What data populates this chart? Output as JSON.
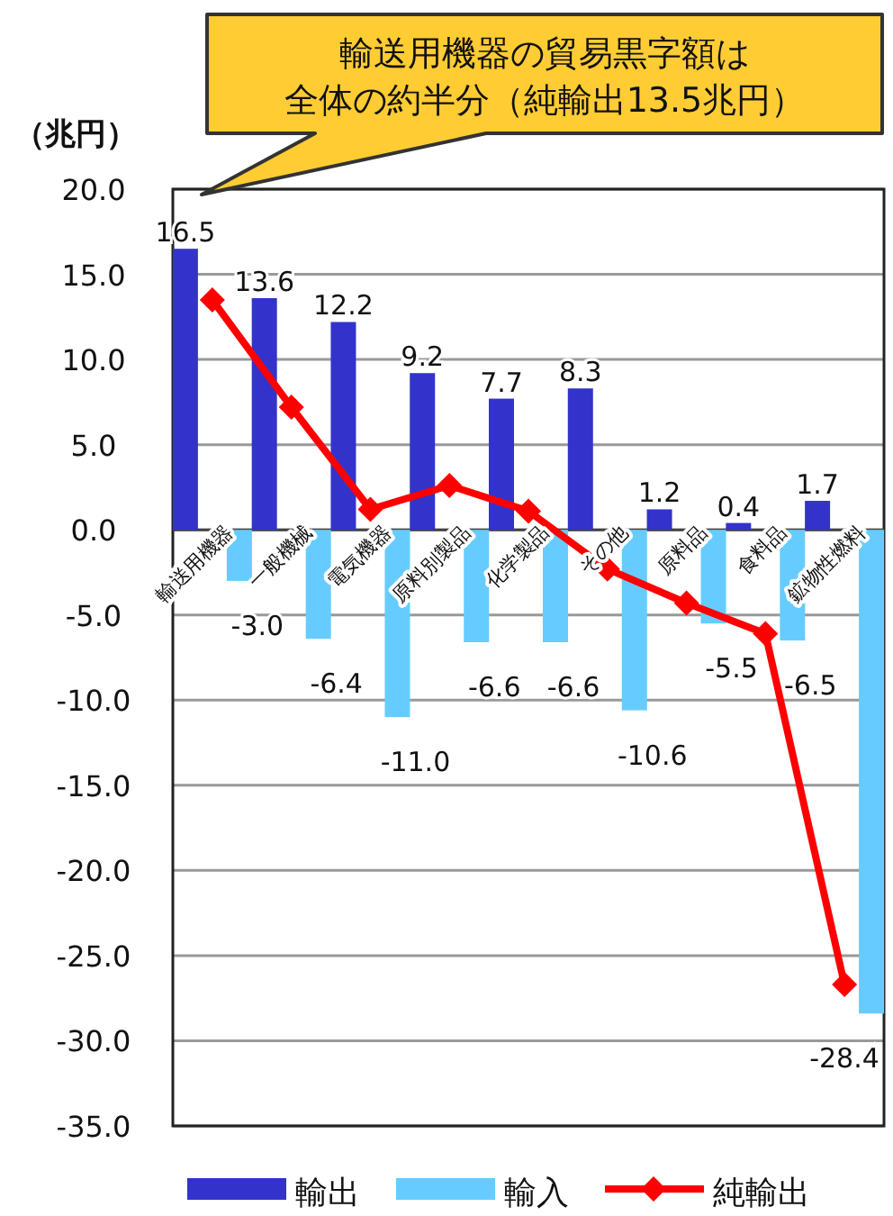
{
  "chart_data": {
    "type": "bar",
    "ylabel": "（兆円）",
    "annotations": [
      "輸送用機器の貿易黒字額は",
      "全体の約半分（純輸出13.5兆円）"
    ],
    "categories": [
      "輸送用機器",
      "一般機械",
      "電気機器",
      "原料別製品",
      "化学製品",
      "その他",
      "原料品",
      "食料品",
      "鉱物性燃料"
    ],
    "series": [
      {
        "name": "輸出",
        "color": "#3333cc",
        "values": [
          16.5,
          13.6,
          12.2,
          9.2,
          7.7,
          8.3,
          1.2,
          0.4,
          1.7
        ],
        "value_labels": [
          "16.5",
          "13.6",
          "12.2",
          "9.2",
          "7.7",
          "8.3",
          "1.2",
          "0.4",
          "1.7"
        ]
      },
      {
        "name": "輸入",
        "color": "#66ccff",
        "values": [
          -3.0,
          -6.4,
          -11.0,
          -6.6,
          -6.6,
          -10.6,
          -5.5,
          -6.5,
          -28.4
        ],
        "value_labels": [
          "-3.0",
          "-6.4",
          "-11.0",
          "-6.6",
          "-6.6",
          "-10.6",
          "-5.5",
          "-6.5",
          "-28.4"
        ]
      },
      {
        "name": "純輸出",
        "type": "line",
        "color": "#ff0000",
        "values": [
          13.5,
          7.2,
          1.2,
          2.6,
          1.1,
          -2.3,
          -4.3,
          -6.1,
          -26.7
        ]
      }
    ],
    "ylim": [
      -35,
      20
    ],
    "yticks": [
      {
        "value": 20,
        "label": "20.0"
      },
      {
        "value": 15,
        "label": "15.0"
      },
      {
        "value": 10,
        "label": "10.0"
      },
      {
        "value": 5,
        "label": "5.0"
      },
      {
        "value": 0,
        "label": "0.0"
      },
      {
        "value": -5,
        "label": "-5.0"
      },
      {
        "value": -10,
        "label": "-10.0"
      },
      {
        "value": -15,
        "label": "-15.0"
      },
      {
        "value": -20,
        "label": "-20.0"
      },
      {
        "value": -25,
        "label": "-25.0"
      },
      {
        "value": -30,
        "label": "-30.0"
      },
      {
        "value": -35,
        "label": "-35.0"
      }
    ],
    "grid": "y",
    "legend": "bottom",
    "marker": "diamond",
    "line_style": "solid"
  }
}
